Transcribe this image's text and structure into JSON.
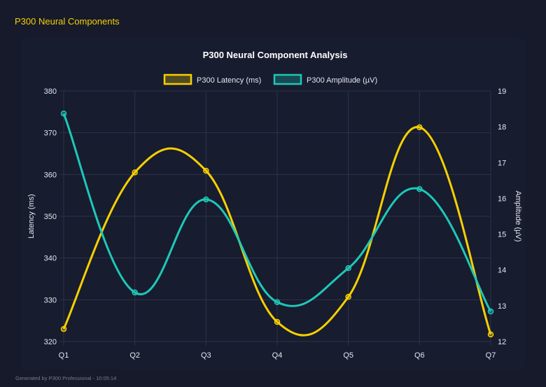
{
  "header": {
    "title": "P300 Neural Components"
  },
  "footer": {
    "text": "Generated by P300 Professional - 10:05:14"
  },
  "chart_data": {
    "type": "line",
    "title": "P300 Neural Component Analysis",
    "categories": [
      "Q1",
      "Q2",
      "Q3",
      "Q4",
      "Q5",
      "Q6",
      "Q7"
    ],
    "series": [
      {
        "name": "P300 Latency (ms)",
        "axis": "left",
        "color": "#f5d000",
        "values": [
          323.0,
          360.5,
          360.9,
          324.7,
          330.7,
          371.3,
          321.7
        ]
      },
      {
        "name": "P300 Amplitude (µV)",
        "axis": "right",
        "color": "#1ec8b8",
        "values": [
          18.37,
          13.37,
          15.97,
          13.1,
          14.05,
          16.26,
          12.84
        ]
      }
    ],
    "ylabel": "Latency (ms)",
    "y2label": "Amplitude (µV)",
    "ylim": [
      320,
      380
    ],
    "y2lim": [
      12,
      19
    ],
    "yticks": [
      "320",
      "330",
      "340",
      "350",
      "360",
      "370",
      "380"
    ],
    "y2ticks": [
      "12",
      "13",
      "14",
      "15",
      "16",
      "17",
      "18",
      "19"
    ],
    "grid": true,
    "legend": "top"
  }
}
